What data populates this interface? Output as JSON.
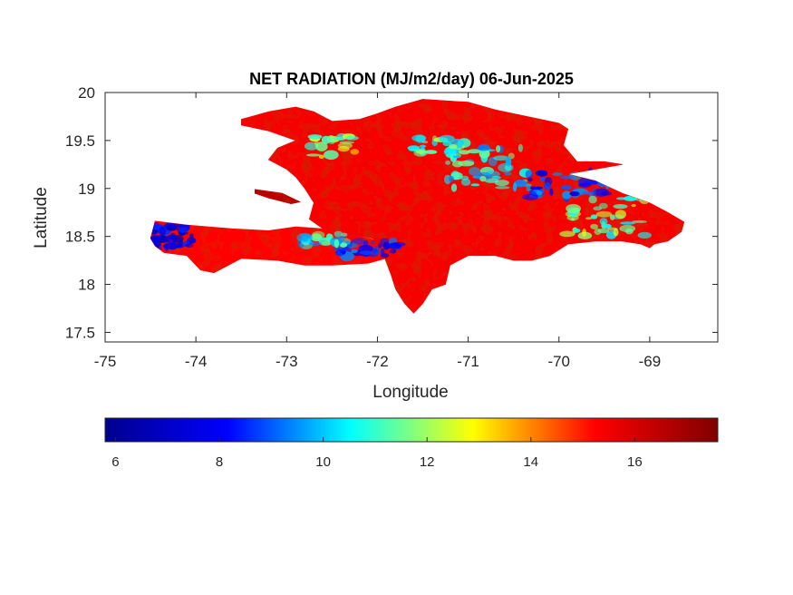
{
  "chart_data": {
    "type": "heatmap",
    "title": "NET RADIATION (MJ/m2/day) 06-Jun-2025",
    "xlabel": "Longitude",
    "ylabel": "Latitude",
    "xlim": [
      -75,
      -68.25
    ],
    "ylim": [
      17.4,
      20
    ],
    "x_ticks": [
      -75,
      -74,
      -73,
      -72,
      -71,
      -70,
      -69
    ],
    "x_tick_labels": [
      "-75",
      "-74",
      "-73",
      "-72",
      "-71",
      "-70",
      "-69"
    ],
    "y_ticks": [
      17.5,
      18,
      18.5,
      19,
      19.5,
      20
    ],
    "y_tick_labels": [
      "17.5",
      "18",
      "18.5",
      "19",
      "19.5",
      "20"
    ],
    "grid": false,
    "colormap": "jet",
    "colorbar": {
      "orientation": "horizontal",
      "location": "bottom",
      "range": [
        5.8,
        17.6
      ],
      "ticks": [
        6,
        8,
        10,
        12,
        14,
        16
      ],
      "tick_labels": [
        "6",
        "8",
        "10",
        "12",
        "14",
        "16"
      ],
      "colors": [
        "#00008f",
        "#0000ff",
        "#00ffff",
        "#ffff00",
        "#ff0000",
        "#800000"
      ]
    },
    "regions": [
      {
        "name": "",
        "shape": [
          [
            -74.45,
            18.66
          ],
          [
            -74.1,
            18.62
          ],
          [
            -73.6,
            18.58
          ],
          [
            -73.2,
            18.56
          ],
          [
            -72.9,
            18.6
          ],
          [
            -72.6,
            18.58
          ],
          [
            -72.4,
            18.55
          ],
          [
            -72.3,
            18.52
          ],
          [
            -72.05,
            18.47
          ],
          [
            -71.95,
            18.42
          ],
          [
            -71.9,
            18.4
          ],
          [
            -71.7,
            18.3
          ],
          [
            -71.4,
            18.2
          ],
          [
            -71.4,
            18.3
          ],
          [
            -71.5,
            18.4
          ],
          [
            -71.6,
            18.35
          ],
          [
            -71.8,
            18.3
          ],
          [
            -72.1,
            18.22
          ],
          [
            -72.5,
            18.2
          ],
          [
            -72.8,
            18.2
          ],
          [
            -73.1,
            18.25
          ],
          [
            -73.5,
            18.27
          ],
          [
            -73.8,
            18.12
          ],
          [
            -73.95,
            18.15
          ],
          [
            -74.1,
            18.3
          ],
          [
            -74.35,
            18.33
          ],
          [
            -74.45,
            18.4
          ],
          [
            -74.5,
            18.48
          ]
        ],
        "value": 15.2
      },
      {
        "name": "",
        "shape": [
          [
            -73.5,
            19.72
          ],
          [
            -73.2,
            19.8
          ],
          [
            -72.9,
            19.85
          ],
          [
            -72.7,
            19.8
          ],
          [
            -72.5,
            19.7
          ],
          [
            -72.2,
            19.72
          ],
          [
            -72.0,
            19.78
          ],
          [
            -71.8,
            19.85
          ],
          [
            -71.5,
            19.93
          ],
          [
            -71.0,
            19.9
          ],
          [
            -70.7,
            19.82
          ],
          [
            -70.5,
            19.78
          ],
          [
            -70.2,
            19.72
          ],
          [
            -70.0,
            19.68
          ],
          [
            -69.9,
            19.62
          ],
          [
            -69.95,
            19.45
          ],
          [
            -69.8,
            19.28
          ],
          [
            -69.5,
            19.28
          ],
          [
            -69.3,
            19.25
          ],
          [
            -69.6,
            19.2
          ],
          [
            -69.9,
            19.15
          ],
          [
            -69.6,
            19.08
          ],
          [
            -69.3,
            18.95
          ],
          [
            -69.0,
            18.85
          ],
          [
            -68.8,
            18.75
          ],
          [
            -68.62,
            18.65
          ],
          [
            -68.65,
            18.55
          ],
          [
            -68.8,
            18.45
          ],
          [
            -68.95,
            18.42
          ],
          [
            -69.0,
            18.38
          ],
          [
            -69.1,
            18.42
          ],
          [
            -69.3,
            18.45
          ],
          [
            -69.6,
            18.45
          ],
          [
            -69.9,
            18.42
          ],
          [
            -70.1,
            18.3
          ],
          [
            -70.3,
            18.25
          ],
          [
            -70.5,
            18.25
          ],
          [
            -70.7,
            18.3
          ],
          [
            -71.0,
            18.3
          ],
          [
            -71.2,
            18.2
          ],
          [
            -71.25,
            18.0
          ],
          [
            -71.4,
            17.95
          ],
          [
            -71.5,
            17.8
          ],
          [
            -71.6,
            17.7
          ],
          [
            -71.7,
            17.8
          ],
          [
            -71.8,
            17.95
          ],
          [
            -71.85,
            18.1
          ],
          [
            -71.95,
            18.35
          ],
          [
            -72.05,
            18.48
          ],
          [
            -72.3,
            18.52
          ],
          [
            -72.4,
            18.55
          ],
          [
            -72.6,
            18.58
          ],
          [
            -72.75,
            18.68
          ],
          [
            -72.7,
            18.85
          ],
          [
            -72.8,
            19.0
          ],
          [
            -72.9,
            19.12
          ],
          [
            -73.0,
            19.2
          ],
          [
            -73.2,
            19.3
          ],
          [
            -73.1,
            19.42
          ],
          [
            -72.9,
            19.5
          ],
          [
            -73.2,
            19.6
          ],
          [
            -73.5,
            19.66
          ]
        ],
        "value": 15.4
      },
      {
        "name": "",
        "shape": [
          [
            -73.35,
            18.99
          ],
          [
            -73.05,
            18.95
          ],
          [
            -72.85,
            18.86
          ],
          [
            -72.95,
            18.84
          ],
          [
            -73.2,
            18.9
          ],
          [
            -73.35,
            18.95
          ]
        ],
        "value": 16.5
      }
    ]
  }
}
